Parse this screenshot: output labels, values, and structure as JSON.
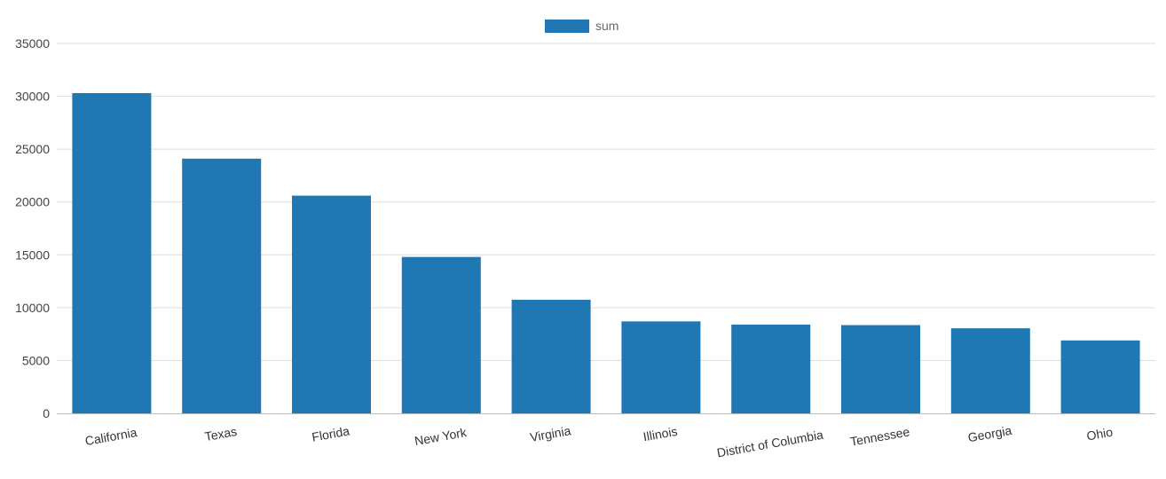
{
  "chart_data": {
    "type": "bar",
    "categories": [
      "California",
      "Texas",
      "Florida",
      "New York",
      "Virginia",
      "Illinois",
      "District of Columbia",
      "Tennessee",
      "Georgia",
      "Ohio"
    ],
    "series": [
      {
        "name": "sum",
        "values": [
          30300,
          24100,
          20600,
          14800,
          10750,
          8700,
          8400,
          8350,
          8050,
          6900
        ]
      }
    ],
    "ylim": [
      0,
      35000
    ],
    "yticks": [
      0,
      5000,
      10000,
      15000,
      20000,
      25000,
      30000,
      35000
    ],
    "grid": true,
    "legend_position": "top-center",
    "colors": {
      "bar": "#1f77b4",
      "grid": "#dddddd",
      "axis": "#bbbbbb"
    }
  }
}
